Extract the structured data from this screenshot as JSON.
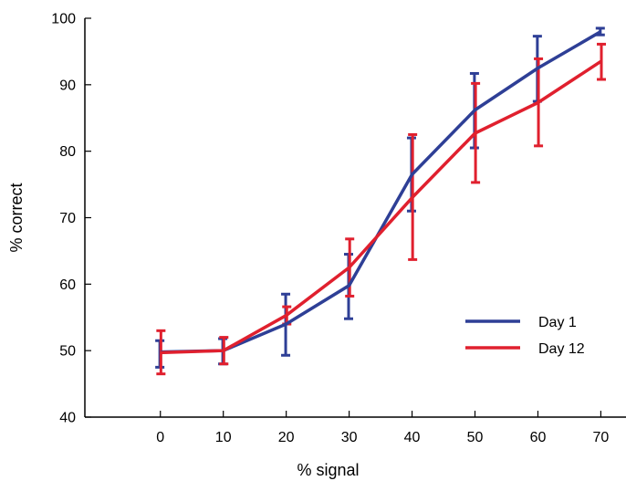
{
  "chart_data": {
    "type": "line",
    "title": "",
    "xlabel": "% signal",
    "ylabel": "% correct",
    "x": [
      0,
      10,
      20,
      30,
      40,
      50,
      60,
      70
    ],
    "xticks": [
      "0",
      "10",
      "20",
      "30",
      "40",
      "50",
      "60",
      "70"
    ],
    "yticks": [
      "40",
      "50",
      "60",
      "70",
      "80",
      "90",
      "100"
    ],
    "xlim": [
      -12,
      74
    ],
    "ylim": [
      40,
      100
    ],
    "grid": false,
    "legend_position": "bottom-right",
    "series": [
      {
        "name": "Day 1",
        "color": "#2e3f96",
        "values": [
          49.8,
          50.0,
          54.0,
          59.8,
          76.5,
          86.2,
          92.5,
          98.0
        ],
        "err_low": [
          47.5,
          48.0,
          49.3,
          54.8,
          71.0,
          80.5,
          87.5,
          97.5
        ],
        "err_high": [
          51.5,
          51.8,
          58.5,
          64.5,
          82.0,
          91.7,
          97.3,
          98.5
        ]
      },
      {
        "name": "Day 12",
        "color": "#e0202e",
        "values": [
          49.7,
          50.0,
          55.3,
          62.5,
          73.0,
          82.7,
          87.3,
          93.5
        ],
        "err_low": [
          46.5,
          48.0,
          54.0,
          58.2,
          63.7,
          75.3,
          80.8,
          90.8
        ],
        "err_high": [
          53.0,
          52.0,
          56.6,
          66.8,
          82.5,
          90.2,
          93.9,
          96.1
        ]
      }
    ]
  }
}
